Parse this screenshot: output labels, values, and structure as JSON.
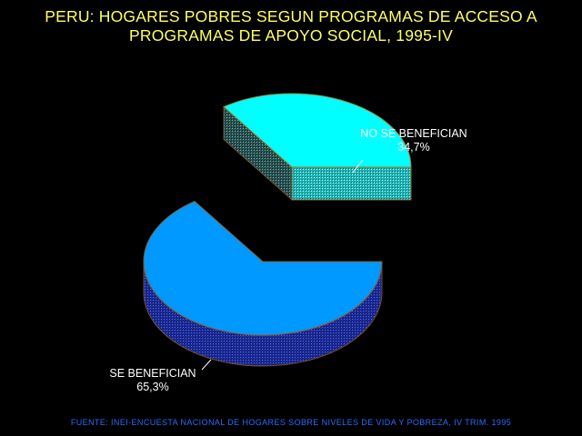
{
  "title": {
    "line1": "PERU: HOGARES POBRES SEGUN PROGRAMAS DE ACCESO A",
    "line2": "PROGRAMAS DE APOYO SOCIAL, 1995-IV"
  },
  "source": "FUENTE: INEI-ENCUESTA NACIONAL DE HOGARES SOBRE NIVELES DE VIDA Y POBREZA, IV TRIM. 1995",
  "chart_data": {
    "type": "pie",
    "title": "PERU: HOGARES POBRES SEGUN PROGRAMAS DE ACCESO A PROGRAMAS DE APOYO SOCIAL, 1995-IV",
    "slices": [
      {
        "label": "SE BENEFICIAN",
        "value": 65.3,
        "value_label": "65,3%",
        "color": "#0099ff",
        "side_color": "#1a2a99",
        "exploded": false
      },
      {
        "label": "NO SE BENEFICIAN",
        "value": 34.7,
        "value_label": "34,7%",
        "color": "#00ffff",
        "side_color": "#33aaaa",
        "exploded": true
      }
    ],
    "style": "3d-exploded"
  }
}
